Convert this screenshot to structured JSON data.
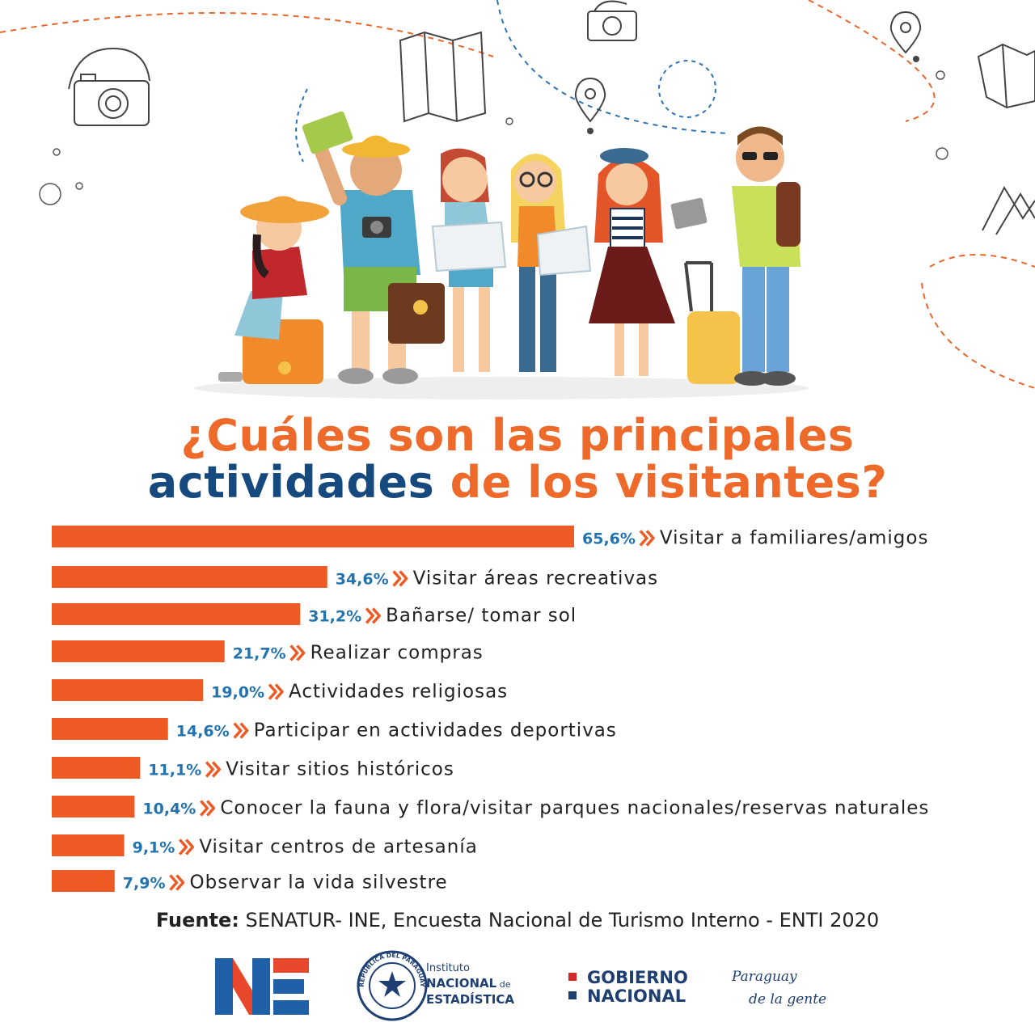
{
  "title": {
    "line1": "¿Cuáles son las principales",
    "line2_part1": "actividades",
    "line2_part2": " de los visitantes?"
  },
  "colors": {
    "bar": "#ee5a24",
    "value": "#2273ae",
    "title_orange": "#ee6a2b",
    "title_blue": "#164a7e"
  },
  "chart_data": {
    "type": "bar",
    "orientation": "horizontal",
    "unit": "%",
    "xlim": [
      0,
      65.6
    ],
    "categories": [
      "Visitar a familiares/amigos",
      "Visitar áreas recreativas",
      "Bañarse/ tomar sol",
      "Realizar compras",
      "Actividades religiosas",
      "Participar en actividades deportivas",
      "Visitar sitios históricos",
      "Conocer la fauna y flora/visitar parques nacionales/reservas naturales",
      "Visitar centros de artesanía",
      "Observar la vida silvestre"
    ],
    "values": [
      65.6,
      34.6,
      31.2,
      21.7,
      19.0,
      14.6,
      11.1,
      10.4,
      9.1,
      7.9
    ],
    "value_labels": [
      "65,6%",
      "34,6%",
      "31,2%",
      "21,7%",
      "19,0%",
      "14,6%",
      "11,1%",
      "10,4%",
      "9,1%",
      "7,9%"
    ]
  },
  "source": {
    "label": "Fuente:",
    "text": " SENATUR- INE, Encuesta Nacional de Turismo Interno - ENTI 2020"
  },
  "logos": {
    "ine": "INE",
    "instituto_line1": "Instituto",
    "instituto_line2a": "NACIONAL",
    "instituto_line2b": " de",
    "instituto_line3": "ESTADÍSTICA",
    "seal_text": "REPÚBLICA DEL PARAGUAY",
    "gobierno_line1": "GOBIERNO",
    "gobierno_line2": "NACIONAL",
    "paraguay_line1": "Paraguay",
    "paraguay_line2": "de la gente"
  }
}
